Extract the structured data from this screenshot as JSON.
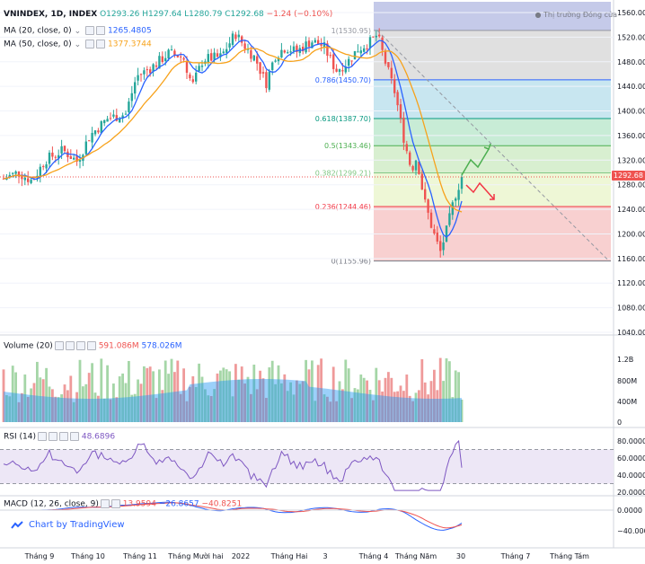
{
  "header": {
    "symbol": "VNINDEX, 1D, INDEX",
    "open": "O1293.26",
    "high": "H1297.64",
    "low": "L1280.79",
    "close": "C1292.68",
    "change": "−1.24 (−0.10%)",
    "market_status": "Thị trường Đóng cửa"
  },
  "ma20": {
    "label": "MA (20, close, 0)",
    "value": "1265.4805",
    "color": "#2962ff"
  },
  "ma50": {
    "label": "MA (50, close, 0)",
    "value": "1377.3744",
    "color": "#f7a21b"
  },
  "volume": {
    "label": "Volume (20)",
    "value1": "591.086M",
    "value2": "578.026M"
  },
  "rsi": {
    "label": "RSI (14)",
    "value": "48.6896"
  },
  "macd": {
    "label": "MACD (12, 26, close, 9)",
    "hist": "13.9594",
    "macd": "−26.8657",
    "signal": "−40.8251"
  },
  "price_badge": "1292.68",
  "footer": {
    "brand": "Chart by TradingView"
  },
  "chart_data": {
    "type": "line",
    "title": "VNINDEX, 1D, INDEX",
    "price_axis": [
      "1560.00",
      "1520.00",
      "1480.00",
      "1440.00",
      "1400.00",
      "1360.00",
      "1320.00",
      "1280.00",
      "1240.00",
      "1200.00",
      "1160.00",
      "1120.00",
      "1080.00",
      "1040.00"
    ],
    "volume_axis": [
      "1.2B",
      "800M",
      "400M",
      "0"
    ],
    "rsi_axis": [
      "80.0000",
      "60.0000",
      "40.0000",
      "20.0000"
    ],
    "macd_axis": [
      "0.0000",
      "−40.0000"
    ],
    "x_ticks": [
      "Tháng 9",
      "Tháng 10",
      "Tháng 11",
      "Tháng Mười hai",
      "2022",
      "Tháng Hai",
      "3",
      "Tháng 4",
      "Tháng Năm",
      "30",
      "Tháng 7",
      "Tháng Tám"
    ],
    "fib_levels": [
      {
        "label": "1(1530.95)",
        "level": 1530.95,
        "color": "#9598a1",
        "fill": "#d1d4dc"
      },
      {
        "label": "0.786(1450.70)",
        "level": 1450.7,
        "color": "#2962ff",
        "fill": "#e0e0e0"
      },
      {
        "label": "0.618(1387.70)",
        "level": 1387.7,
        "color": "#089981",
        "fill": "#c8e6f0"
      },
      {
        "label": "0.5(1343.46)",
        "level": 1343.46,
        "color": "#4caf50",
        "fill": "#c8ecd6"
      },
      {
        "label": "0.382(1299.21)",
        "level": 1299.21,
        "color": "#81c784",
        "fill": "#d8efd0"
      },
      {
        "label": "0.236(1244.46)",
        "level": 1244.46,
        "color": "#f23645",
        "fill": "#eef7d6"
      },
      {
        "label": "0(1155.96)",
        "level": 1155.96,
        "color": "#787b86",
        "fill": "#f8d0d0"
      }
    ],
    "last_close": 1292.68,
    "ma20_last": 1265.48,
    "ma50_last": 1377.37,
    "rsi_last": 48.69,
    "rsi_bands": [
      70,
      30
    ],
    "volume_last": [
      591.086,
      578.026
    ]
  }
}
